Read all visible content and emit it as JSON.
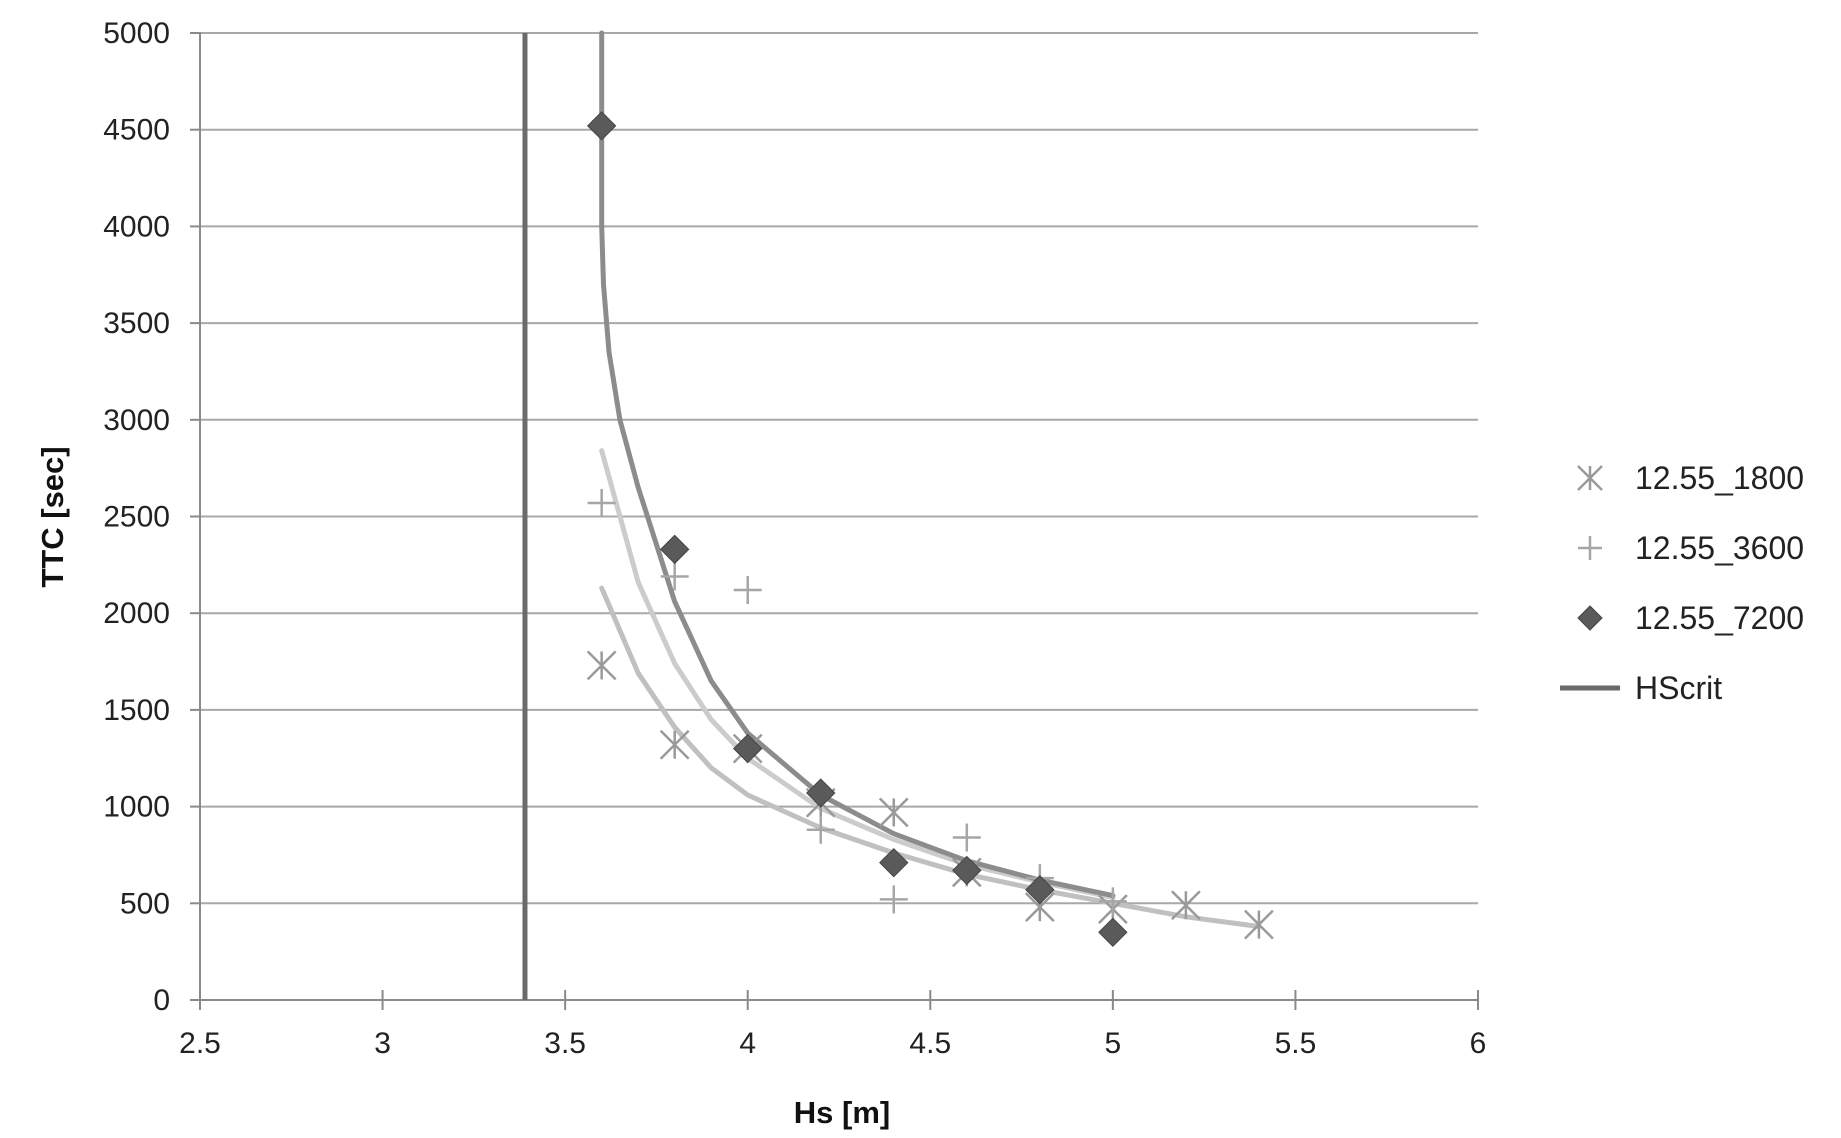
{
  "chart_data": {
    "type": "scatter",
    "title": "",
    "xlabel": "Hs [m]",
    "ylabel": "TTC [sec]",
    "xlim": [
      2.5,
      6
    ],
    "ylim": [
      0,
      5000
    ],
    "xticks": [
      2.5,
      3,
      3.5,
      4,
      4.5,
      5,
      5.5,
      6
    ],
    "xtick_labels": [
      "2.5",
      "3",
      "3.5",
      "4",
      "4.5",
      "5",
      "5.5",
      "6"
    ],
    "yticks": [
      0,
      500,
      1000,
      1500,
      2000,
      2500,
      3000,
      3500,
      4000,
      4500,
      5000
    ],
    "ytick_labels": [
      "0",
      "500",
      "1000",
      "1500",
      "2000",
      "2500",
      "3000",
      "3500",
      "4000",
      "4500",
      "5000"
    ],
    "grid": "horizontal",
    "legend_position": "right",
    "series": [
      {
        "name": "12.55_1800",
        "marker": "asterisk",
        "color": "#9a9a9a",
        "x": [
          3.6,
          3.8,
          4.0,
          4.2,
          4.4,
          4.6,
          4.8,
          5.0,
          5.2,
          5.4
        ],
        "y": [
          1730,
          1320,
          1300,
          1020,
          970,
          660,
          480,
          470,
          490,
          390
        ],
        "trend": {
          "color": "#c0c0c0",
          "x": [
            3.6,
            3.7,
            3.8,
            3.9,
            4.0,
            4.2,
            4.4,
            4.6,
            4.8,
            5.0,
            5.2,
            5.4
          ],
          "y": [
            2130,
            1690,
            1410,
            1200,
            1060,
            890,
            760,
            650,
            570,
            500,
            430,
            380
          ]
        }
      },
      {
        "name": "12.55_3600",
        "marker": "plus",
        "color": "#a6a6a6",
        "x": [
          3.6,
          3.8,
          4.0,
          4.2,
          4.4,
          4.6,
          4.8,
          5.0
        ],
        "y": [
          2570,
          2190,
          2120,
          880,
          520,
          840,
          630,
          510
        ],
        "trend": {
          "color": "#cccccc",
          "x": [
            3.6,
            3.7,
            3.8,
            3.9,
            4.0,
            4.2,
            4.4,
            4.6,
            4.8,
            5.0
          ],
          "y": [
            2840,
            2160,
            1740,
            1450,
            1250,
            990,
            830,
            700,
            610,
            530
          ]
        }
      },
      {
        "name": "12.55_7200",
        "marker": "diamond",
        "color": "#5a5a5a",
        "x": [
          3.6,
          3.8,
          4.0,
          4.2,
          4.4,
          4.6,
          4.8,
          5.0
        ],
        "y": [
          4520,
          2330,
          1300,
          1070,
          710,
          670,
          570,
          350
        ],
        "trend": {
          "color": "#8c8c8c",
          "x": [
            3.6,
            3.6,
            3.605,
            3.62,
            3.65,
            3.7,
            3.8,
            3.9,
            4.0,
            4.2,
            4.4,
            4.6,
            4.8,
            5.0
          ],
          "y": [
            5000,
            4000,
            3700,
            3350,
            3000,
            2650,
            2060,
            1650,
            1380,
            1060,
            860,
            720,
            620,
            540
          ]
        }
      },
      {
        "name": "HScrit",
        "type": "vertical-line",
        "color": "#6a6a6a",
        "x": [
          3.39,
          3.39
        ],
        "y": [
          0,
          5000
        ]
      }
    ]
  }
}
